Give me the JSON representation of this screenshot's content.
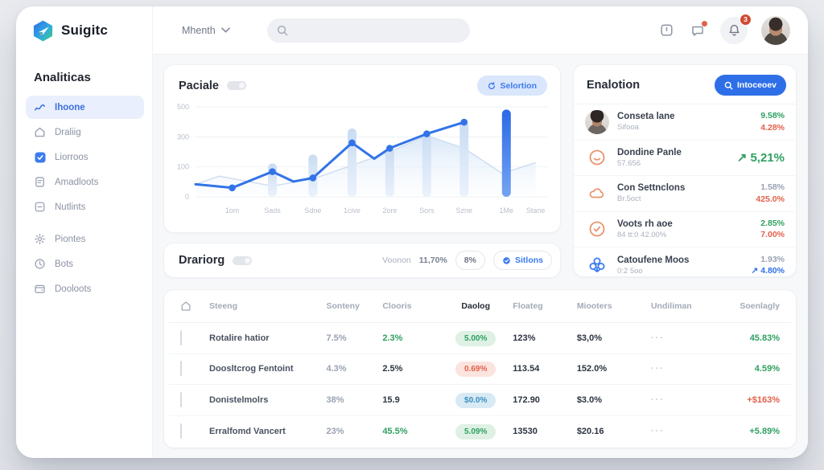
{
  "theme": {
    "accent": "#2e6fe8",
    "green": "#2fa061",
    "red": "#e2604a",
    "orange": "#e8936c",
    "bar_light": "#cfe0f4",
    "bar_dark": "#2b6ae6"
  },
  "topbar": {
    "logo_text": "Suigitc",
    "period_label": "Mhenth",
    "search_placeholder": "",
    "notification_count": "3",
    "icons": [
      "board-icon",
      "chat-icon",
      "bell-icon",
      "user-avatar"
    ]
  },
  "sidebar": {
    "section_title": "Analiticas",
    "items": [
      {
        "label": "Ihoone",
        "icon": "chart-line-icon",
        "active": true,
        "group_break": false
      },
      {
        "label": "Draliig",
        "icon": "home-icon",
        "active": false,
        "group_break": false
      },
      {
        "label": "Liorroos",
        "icon": "apps-icon",
        "active": false,
        "group_break": false
      },
      {
        "label": "Amadloots",
        "icon": "receipt-icon",
        "active": false,
        "group_break": false
      },
      {
        "label": "Nutlints",
        "icon": "minus-square-icon",
        "active": false,
        "group_break": false
      },
      {
        "label": "Piontes",
        "icon": "gear-icon",
        "active": false,
        "group_break": true
      },
      {
        "label": "Bots",
        "icon": "clock-icon",
        "active": false,
        "group_break": false
      },
      {
        "label": "Dooloots",
        "icon": "wallet-icon",
        "active": false,
        "group_break": false
      }
    ]
  },
  "chart_card": {
    "title": "Paciale",
    "action_label": "Selortion",
    "chart_data": {
      "type": "combo-bar-line-area",
      "categories": [
        "1om",
        "Sads",
        "Sdne",
        "1cive",
        "2ore",
        "Sors",
        "Szne",
        "1Me",
        "Stane"
      ],
      "category_x": [
        0.104,
        0.218,
        0.333,
        0.444,
        0.551,
        0.656,
        0.762,
        0.882,
        0.965
      ],
      "ylim": [
        0,
        500
      ],
      "yticks": [
        "500",
        "300",
        "100",
        "0"
      ],
      "grid": true,
      "legend": false,
      "series": [
        {
          "name": "volume-bars",
          "type": "bar",
          "x": [
            0.218,
            0.333,
            0.444,
            0.551,
            0.656,
            0.762,
            0.882
          ],
          "values": [
            185,
            235,
            380,
            270,
            355,
            420,
            485
          ],
          "dark_index": 6
        },
        {
          "name": "trend-line",
          "type": "line",
          "points": [
            [
              0,
              70,
              0
            ],
            [
              0.104,
              50,
              1
            ],
            [
              0.218,
              140,
              1
            ],
            [
              0.278,
              85,
              0
            ],
            [
              0.333,
              105,
              1
            ],
            [
              0.444,
              300,
              1
            ],
            [
              0.507,
              212,
              0
            ],
            [
              0.551,
              270,
              1
            ],
            [
              0.656,
              350,
              1
            ],
            [
              0.762,
              415,
              1
            ]
          ]
        },
        {
          "name": "baseline-area",
          "type": "area",
          "points": [
            [
              0,
              70
            ],
            [
              0.067,
              115
            ],
            [
              0.218,
              60
            ],
            [
              0.333,
              100
            ],
            [
              0.444,
              175
            ],
            [
              0.551,
              250
            ],
            [
              0.656,
              340
            ],
            [
              0.762,
              270
            ],
            [
              0.87,
              130
            ],
            [
              0.965,
              190
            ]
          ]
        }
      ]
    }
  },
  "panel": {
    "title": "Enalotion",
    "action_label": "Intoceoev",
    "rows": [
      {
        "icon": "avatar-female",
        "name": "Conseta lane",
        "sub": "Sifooa",
        "values": [
          {
            "text": "9.58%",
            "color": "green"
          },
          {
            "text": "4.28%",
            "color": "red"
          }
        ]
      },
      {
        "icon": "ring-icon",
        "name": "Dondine Panle",
        "sub": "57.656",
        "values": [
          {
            "text": "↗ 5,21%",
            "color": "green",
            "size": "big"
          }
        ]
      },
      {
        "icon": "cloud-icon",
        "name": "Con Settnclons",
        "sub": "Br.5oct",
        "values": [
          {
            "text": "1.58%",
            "color": "gray"
          },
          {
            "text": "425.0%",
            "color": "red"
          }
        ]
      },
      {
        "icon": "check-circle-icon",
        "name": "Voots rh aoe",
        "sub": "84 tt:0 42.00%",
        "values": [
          {
            "text": "2.85%",
            "color": "green"
          },
          {
            "text": "7.00%",
            "color": "red"
          }
        ]
      },
      {
        "icon": "flower-icon",
        "name": "Catoufene Moos",
        "sub": "0:2 5oo",
        "values": [
          {
            "text": "1.93%",
            "color": "gray"
          },
          {
            "text": "↗ 4.80%",
            "color": "blue"
          }
        ]
      }
    ]
  },
  "table": {
    "title": "Drariorg",
    "meta_label": "Voonon",
    "meta_value": "11,70%",
    "meta_pill": "8%",
    "meta_button": "Sitlons",
    "columns": [
      "Steeng",
      "Sonteny",
      "Clooris",
      "Daolog",
      "Floateg",
      "Miooters",
      "Undiliman",
      "Soenlagly"
    ],
    "emphasized_column": "Daolog",
    "rows": [
      {
        "name": "Rotalire hatior",
        "sonteny": "7.5%",
        "clooris": "2.3%",
        "clooris_color": "green",
        "daolog": "5.00%",
        "daolog_style": "green",
        "floateg": "123%",
        "miooters": "$3,0%",
        "undiliman": "···",
        "soenlagly": "45.83%",
        "soenlagly_color": "green"
      },
      {
        "name": "Doosltcrog Fentoint",
        "sonteny": "4.3%",
        "clooris": "2.5%",
        "clooris_color": "dark",
        "daolog": "0.69%",
        "daolog_style": "red",
        "floateg": "113.54",
        "miooters": "152.0%",
        "undiliman": "···",
        "soenlagly": "4.59%",
        "soenlagly_color": "green"
      },
      {
        "name": "Donistelmolrs",
        "sonteny": "38%",
        "clooris": "15.9",
        "clooris_color": "dark",
        "daolog": "$0.0%",
        "daolog_style": "blue",
        "floateg": "172.90",
        "miooters": "$3.0%",
        "undiliman": "···",
        "soenlagly": "+$163%",
        "soenlagly_color": "red"
      },
      {
        "name": "Erralfomd Vancert",
        "sonteny": "23%",
        "clooris": "45.5%",
        "clooris_color": "green",
        "daolog": "5.09%",
        "daolog_style": "green",
        "floateg": "13530",
        "miooters": "$20.16",
        "undiliman": "···",
        "soenlagly": "+5.89%",
        "soenlagly_color": "green"
      }
    ]
  }
}
